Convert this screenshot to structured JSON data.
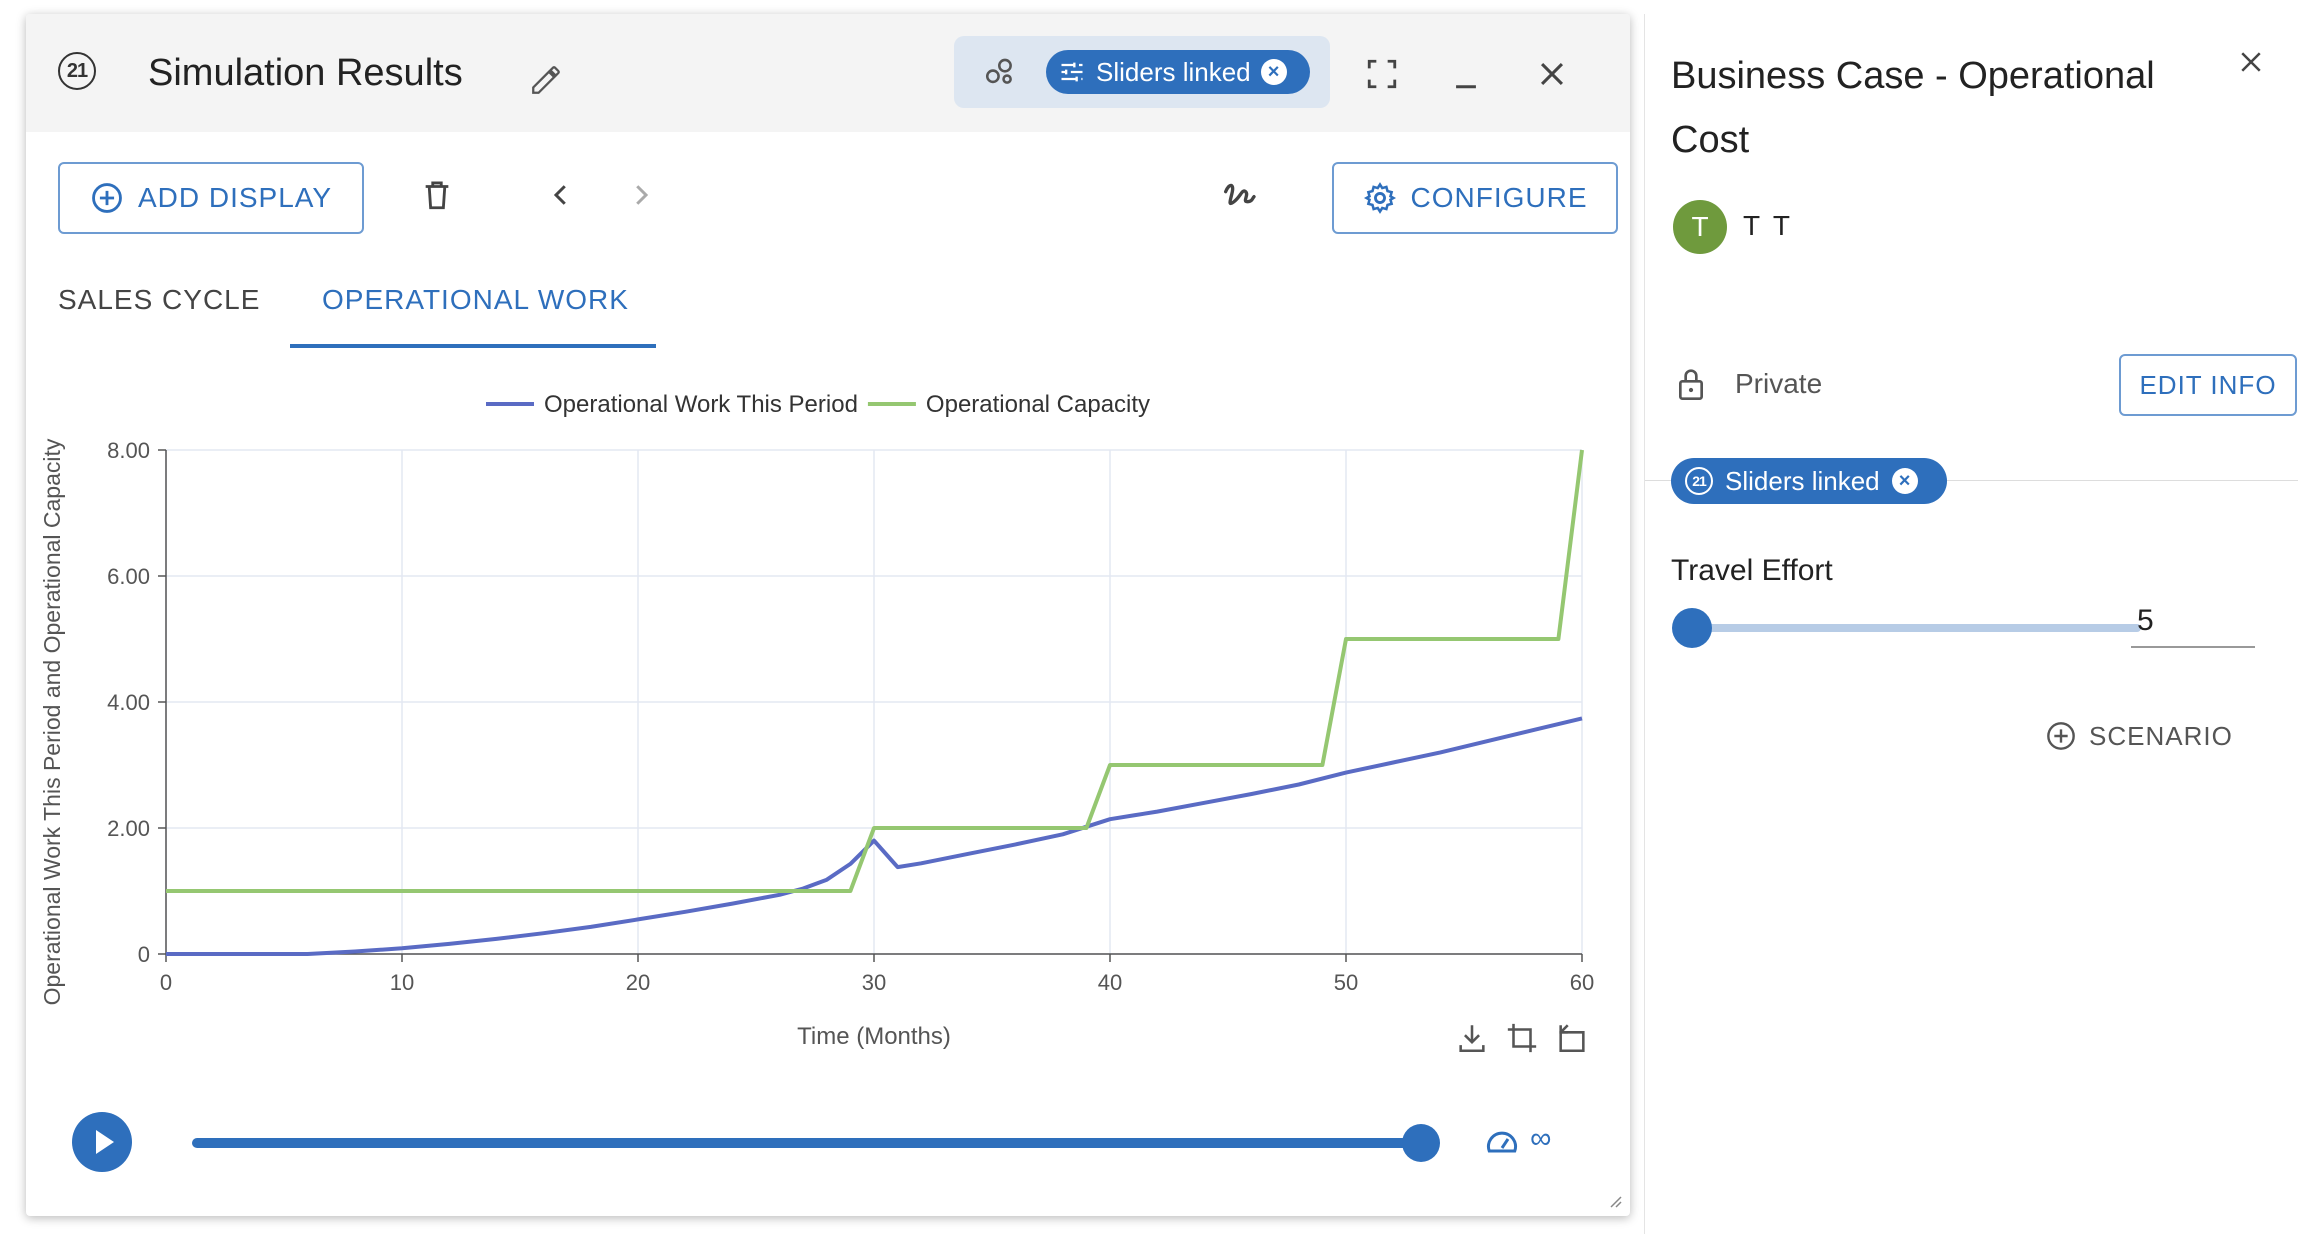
{
  "simulation": {
    "badge": "21",
    "title": "Simulation Results",
    "link_chip_label": "Sliders linked",
    "toolbar": {
      "add_display_label": "ADD DISPLAY",
      "configure_label": "CONFIGURE"
    },
    "tabs": [
      {
        "label": "SALES CYCLE",
        "active": false
      },
      {
        "label": "OPERATIONAL WORK",
        "active": true
      }
    ],
    "playback": {
      "progress": 1.0,
      "speed_label": "∞"
    }
  },
  "chart_data": {
    "type": "line",
    "title": "",
    "xlabel": "Time (Months)",
    "ylabel": "Operational Work This Period and Operational Capacity",
    "xlim": [
      0,
      60
    ],
    "ylim": [
      0,
      8
    ],
    "x_ticks": [
      "0",
      "10",
      "20",
      "30",
      "40",
      "50",
      "60"
    ],
    "y_ticks": [
      "0",
      "2.00",
      "4.00",
      "6.00",
      "8.00"
    ],
    "grid": true,
    "legend_position": "top",
    "series": [
      {
        "name": "Operational Work This Period",
        "color": "#5a6bc4",
        "x": [
          0,
          6,
          8,
          10,
          12,
          14,
          16,
          18,
          20,
          22,
          24,
          26,
          27,
          28,
          29,
          30,
          31,
          32,
          34,
          36,
          38,
          40,
          41,
          42,
          44,
          46,
          48,
          50,
          52,
          54,
          56,
          58,
          60
        ],
        "y": [
          0,
          0,
          0.04,
          0.09,
          0.16,
          0.24,
          0.33,
          0.43,
          0.55,
          0.67,
          0.8,
          0.94,
          1.04,
          1.18,
          1.43,
          1.8,
          1.38,
          1.44,
          1.59,
          1.74,
          1.9,
          2.14,
          2.2,
          2.26,
          2.4,
          2.54,
          2.69,
          2.88,
          3.04,
          3.2,
          3.38,
          3.56,
          3.74
        ]
      },
      {
        "name": "Operational Capacity",
        "color": "#95c771",
        "x": [
          0,
          29,
          30,
          39,
          40,
          49,
          50,
          59,
          60
        ],
        "y": [
          1,
          1,
          2,
          2,
          3,
          3,
          5,
          5,
          8
        ]
      }
    ]
  },
  "info": {
    "title": "Business Case - Operational Cost",
    "user_initial": "T",
    "user_name": "T T",
    "privacy": "Private",
    "edit_label": "EDIT INFO",
    "link_chip_label": "Sliders linked",
    "slider_label": "Travel Effort",
    "slider_value": "5",
    "scenario_label": "SCENARIO"
  },
  "colors": {
    "accent": "#2e6fbc",
    "work_series": "#5a6bc4",
    "capacity_series": "#95c771"
  }
}
